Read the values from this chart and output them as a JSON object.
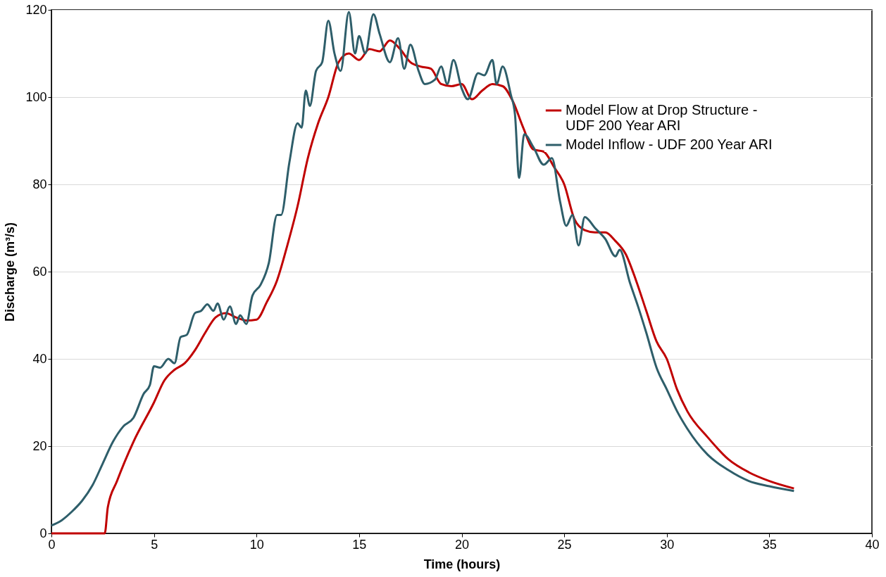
{
  "chart_data": {
    "type": "line",
    "xlabel": "Time (hours)",
    "ylabel": "Discharge (m³/s)",
    "xlim": [
      0,
      40
    ],
    "xticks": [
      0,
      5,
      10,
      15,
      20,
      25,
      30,
      35,
      40
    ],
    "ylim": [
      0,
      120
    ],
    "yticks": [
      0,
      20,
      40,
      60,
      80,
      100,
      120
    ],
    "grid": "y",
    "legend": "right",
    "marker": "none",
    "line_style": "solid",
    "series": [
      {
        "name": "Model Flow at Drop Structure - UDF 200 Year ARI",
        "color": "#c00000",
        "x": [
          0,
          2.6,
          2.75,
          3.2,
          4,
          5,
          5.5,
          6,
          6.5,
          7,
          7.5,
          8,
          8.5,
          9,
          9.5,
          10,
          10.5,
          11,
          11.5,
          12,
          12.5,
          13,
          13.5,
          14,
          14.5,
          15,
          15.5,
          16,
          16.5,
          17,
          17.5,
          18,
          18.5,
          19,
          19.5,
          20,
          20.5,
          21,
          21.5,
          22,
          22.5,
          23,
          23.5,
          24,
          24.5,
          25,
          25.5,
          26,
          26.5,
          27,
          27.5,
          28,
          28.5,
          29,
          29.5,
          30,
          30.5,
          31,
          32,
          33,
          34,
          35,
          36.2
        ],
        "values": [
          0,
          0,
          6,
          12,
          21,
          30,
          35,
          37.5,
          39,
          42,
          46,
          49.5,
          50.5,
          49.5,
          48.8,
          49,
          53,
          58,
          66,
          75,
          86,
          94,
          100,
          108,
          110,
          108.5,
          111,
          110.5,
          113,
          111,
          108,
          107,
          106.5,
          103,
          102.5,
          103,
          99.5,
          101.5,
          103,
          102.5,
          99,
          93,
          88,
          87.5,
          84,
          80,
          72,
          69.5,
          69,
          69,
          67,
          64,
          58,
          51,
          44,
          40,
          33,
          28,
          22,
          17,
          14,
          12,
          10.3
        ]
      },
      {
        "name": "Model Inflow - UDF 200 Year ARI",
        "color": "#2e5e6a",
        "x": [
          0,
          0.5,
          1,
          1.5,
          2,
          2.5,
          3,
          3.5,
          4,
          4.5,
          4.8,
          5,
          5.3,
          5.7,
          6,
          6.3,
          6.6,
          7,
          7.3,
          7.6,
          7.9,
          8.1,
          8.4,
          8.7,
          9,
          9.2,
          9.5,
          9.8,
          10.2,
          10.6,
          11,
          11.2,
          11.6,
          12,
          12.2,
          12.4,
          12.6,
          12.9,
          13.2,
          13.5,
          13.8,
          14.1,
          14.5,
          14.8,
          15,
          15.3,
          15.7,
          16,
          16.5,
          16.9,
          17.2,
          17.5,
          17.9,
          18.2,
          18.7,
          19,
          19.3,
          19.6,
          20,
          20.3,
          20.8,
          21.1,
          21.5,
          21.7,
          22,
          22.4,
          22.6,
          22.8,
          23.05,
          23.5,
          24,
          24.4,
          24.8,
          25.1,
          25.4,
          25.7,
          26,
          26.5,
          27,
          27.5,
          27.7,
          28.2,
          28.6,
          29,
          29.5,
          30,
          30.5,
          31,
          32,
          33,
          34,
          35,
          36.2
        ],
        "values": [
          1.8,
          3,
          5,
          7.5,
          11,
          16,
          21,
          24.5,
          26.5,
          32,
          34,
          38.3,
          38,
          40,
          39,
          45,
          45.5,
          50.5,
          51,
          52.5,
          51,
          52.7,
          49,
          52,
          48,
          50,
          48,
          54.5,
          57,
          62,
          73,
          73,
          85,
          94,
          93,
          101.5,
          98,
          106,
          108,
          117.5,
          110,
          106,
          119.5,
          110,
          114,
          110,
          119,
          114.5,
          108,
          113.5,
          106.5,
          112,
          106,
          103,
          104,
          107,
          103,
          108.5,
          102,
          99.5,
          105.5,
          105,
          108.5,
          103,
          107,
          100.5,
          96,
          81.5,
          91.5,
          88.5,
          84.5,
          86,
          76,
          70.5,
          73,
          66,
          72.5,
          70,
          67.5,
          63.5,
          65,
          57.5,
          52,
          46,
          38,
          33,
          28,
          24,
          18,
          14.5,
          12,
          10.8,
          9.7
        ]
      }
    ]
  }
}
